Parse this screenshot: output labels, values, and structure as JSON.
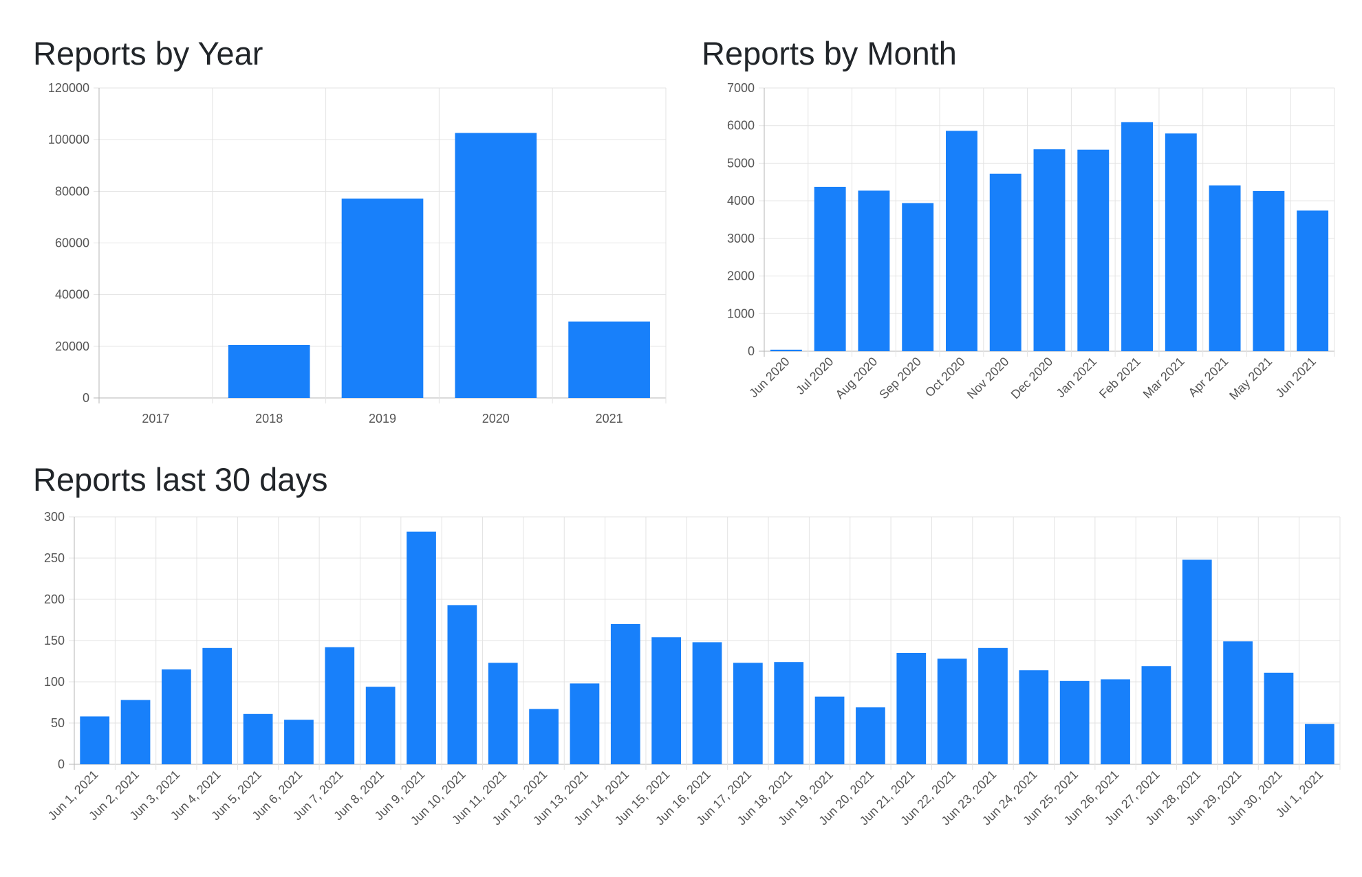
{
  "colors": {
    "bar": "#1880fa",
    "grid": "#e3e3e3",
    "axis": "#b5b5b5",
    "tick_text": "#555555",
    "title": "#212529"
  },
  "charts": {
    "year": {
      "title": "Reports by Year",
      "chart_data": {
        "type": "bar",
        "categories": [
          "2017",
          "2018",
          "2019",
          "2020",
          "2021"
        ],
        "values": [
          0,
          20500,
          77200,
          102600,
          29600
        ],
        "ylim": [
          0,
          120000
        ],
        "yticks": [
          0,
          20000,
          40000,
          60000,
          80000,
          100000,
          120000
        ],
        "grid": true,
        "legend": "none"
      }
    },
    "month": {
      "title": "Reports by Month",
      "chart_data": {
        "type": "bar",
        "categories": [
          "Jun 2020",
          "Jul 2020",
          "Aug 2020",
          "Sep 2020",
          "Oct 2020",
          "Nov 2020",
          "Dec 2020",
          "Jan 2021",
          "Feb 2021",
          "Mar 2021",
          "Apr 2021",
          "May 2021",
          "Jun 2021"
        ],
        "values": [
          40,
          4370,
          4270,
          3940,
          5860,
          4720,
          5370,
          5360,
          6090,
          5790,
          4410,
          4260,
          3740
        ],
        "ylim": [
          0,
          7000
        ],
        "yticks": [
          0,
          1000,
          2000,
          3000,
          4000,
          5000,
          6000,
          7000
        ],
        "grid": true,
        "legend": "none"
      }
    },
    "days": {
      "title": "Reports last 30 days",
      "chart_data": {
        "type": "bar",
        "categories": [
          "Jun 1, 2021",
          "Jun 2, 2021",
          "Jun 3, 2021",
          "Jun 4, 2021",
          "Jun 5, 2021",
          "Jun 6, 2021",
          "Jun 7, 2021",
          "Jun 8, 2021",
          "Jun 9, 2021",
          "Jun 10, 2021",
          "Jun 11, 2021",
          "Jun 12, 2021",
          "Jun 13, 2021",
          "Jun 14, 2021",
          "Jun 15, 2021",
          "Jun 16, 2021",
          "Jun 17, 2021",
          "Jun 18, 2021",
          "Jun 19, 2021",
          "Jun 20, 2021",
          "Jun 21, 2021",
          "Jun 22, 2021",
          "Jun 23, 2021",
          "Jun 24, 2021",
          "Jun 25, 2021",
          "Jun 26, 2021",
          "Jun 27, 2021",
          "Jun 28, 2021",
          "Jun 29, 2021",
          "Jun 30, 2021",
          "Jul 1, 2021"
        ],
        "values": [
          58,
          78,
          115,
          141,
          61,
          54,
          142,
          94,
          282,
          193,
          123,
          67,
          98,
          170,
          154,
          148,
          123,
          124,
          82,
          69,
          135,
          128,
          141,
          114,
          101,
          103,
          119,
          248,
          149,
          111,
          49
        ],
        "ylim": [
          0,
          300
        ],
        "yticks": [
          0,
          50,
          100,
          150,
          200,
          250,
          300
        ],
        "grid": true,
        "legend": "none"
      }
    }
  }
}
